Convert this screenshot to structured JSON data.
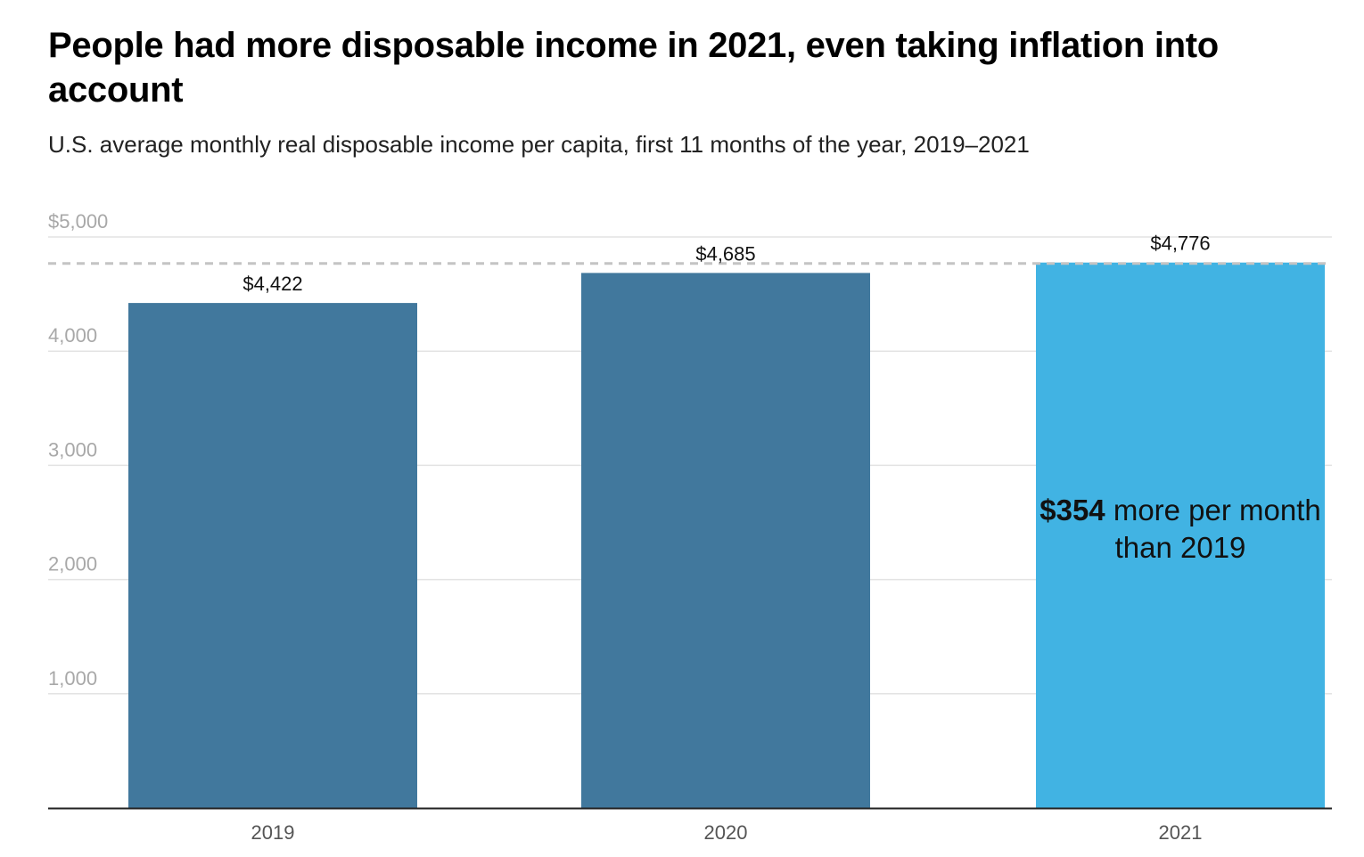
{
  "chart_data": {
    "type": "bar",
    "title": "People had more disposable income in 2021, even taking inflation into account",
    "subtitle": "U.S. average monthly real disposable income per capita, first 11 months of the year, 2019–2021",
    "categories": [
      "2019",
      "2020",
      "2021"
    ],
    "values": [
      4422,
      4685,
      4776
    ],
    "value_labels": [
      "$4,422",
      "$4,685",
      "$4,776"
    ],
    "ylim": [
      0,
      5000
    ],
    "yticks": [
      1000,
      2000,
      3000,
      4000,
      5000
    ],
    "ytick_labels": [
      "1,000",
      "2,000",
      "3,000",
      "4,000",
      "$5,000"
    ],
    "grid": true,
    "reference_line": {
      "value": 4776,
      "style": "dashed"
    },
    "annotation": {
      "strong": "$354",
      "rest": " more per month than 2019"
    },
    "colors": {
      "bar": "#41789d",
      "highlight": "#41b3e3",
      "grid": "#e3e3e3",
      "reference": "#c4c4c4",
      "axis": "#222222"
    },
    "highlight_index": 2
  }
}
